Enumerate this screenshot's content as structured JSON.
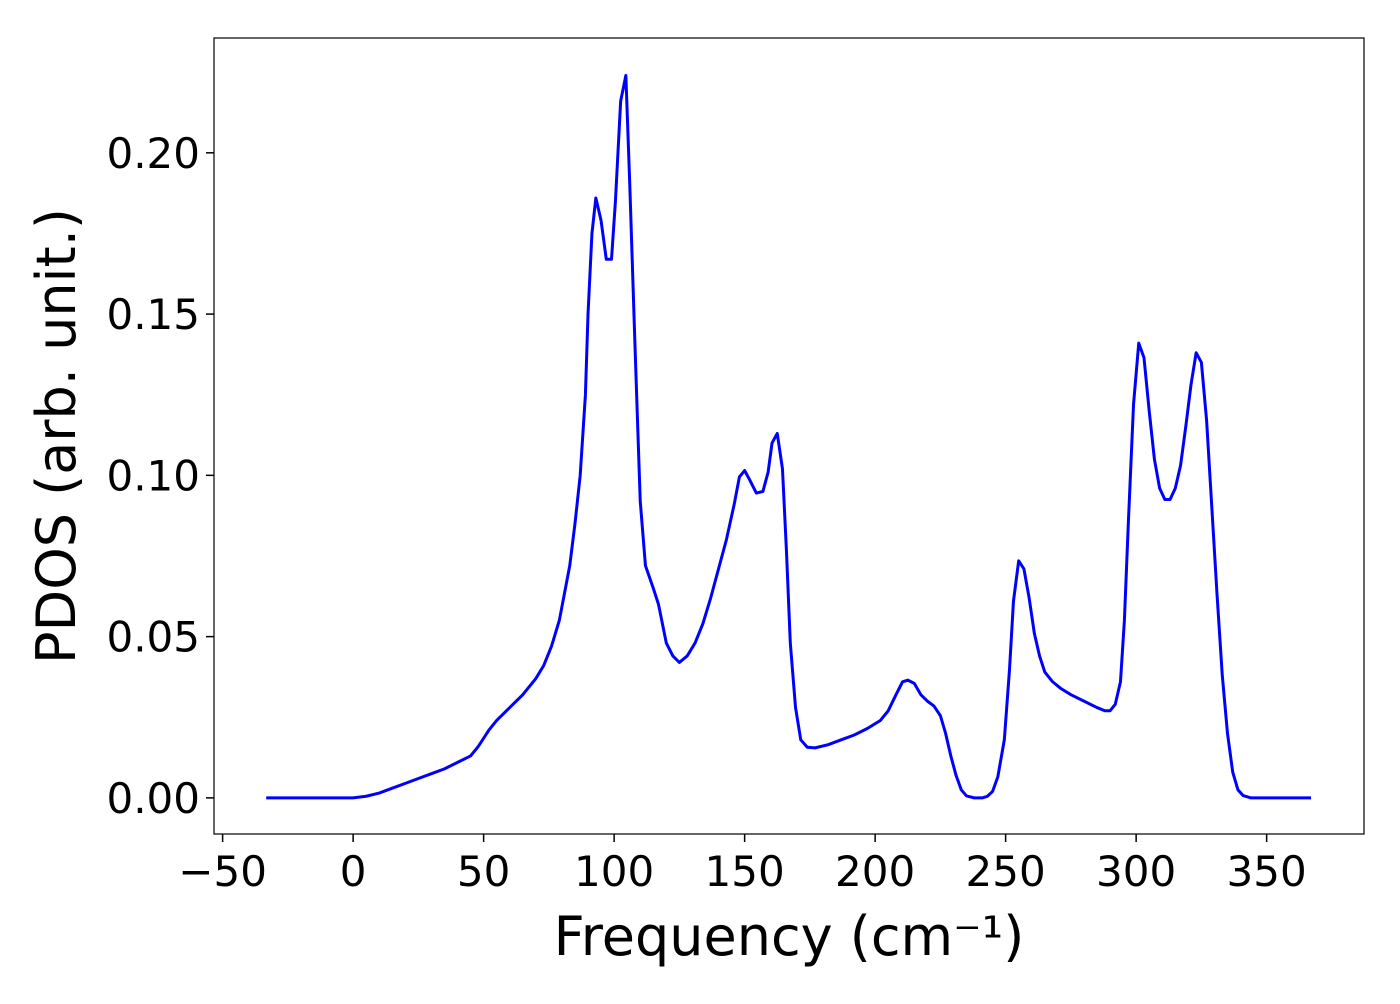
{
  "chart_data": {
    "type": "line",
    "xlabel": "Frequency (cm⁻¹)",
    "ylabel": "PDOS (arb. unit.)",
    "xlim": [
      -53.3,
      387.3
    ],
    "ylim": [
      -0.0112,
      0.2356
    ],
    "xticks": [
      {
        "value": -50,
        "label": "−50"
      },
      0,
      50,
      100,
      150,
      200,
      250,
      300,
      350
    ],
    "yticks": [
      {
        "value": 0,
        "label": "0.00"
      },
      {
        "value": 0.05,
        "label": "0.05"
      },
      {
        "value": 0.1,
        "label": "0.10"
      },
      {
        "value": 0.15,
        "label": "0.15"
      },
      {
        "value": 0.2,
        "label": "0.20"
      }
    ],
    "grid": false,
    "series": [
      {
        "color": "#0000ff",
        "x": [
          -33.3,
          0,
          5,
          10,
          15,
          20,
          25,
          30,
          35,
          40,
          45,
          48,
          52,
          55,
          60,
          65,
          70,
          73,
          76,
          79,
          83,
          85,
          87,
          89,
          90,
          91.5,
          93,
          95,
          97,
          99,
          100.5,
          102.5,
          104.5,
          106,
          108,
          110,
          112,
          115,
          117,
          120,
          122.5,
          125,
          128,
          131,
          134,
          137,
          140,
          143,
          146,
          148,
          150,
          152,
          154.5,
          157,
          159,
          160.5,
          162.5,
          164.5,
          166,
          167.5,
          169.5,
          171.5,
          174,
          177,
          182,
          187,
          192,
          197,
          202,
          205,
          208,
          210.5,
          212.5,
          215,
          217.5,
          220,
          222.5,
          225,
          227,
          229,
          231,
          233,
          235,
          238,
          241,
          243,
          245,
          247,
          249.5,
          251.5,
          253,
          255,
          257,
          259,
          261,
          263,
          265,
          268,
          271,
          275,
          280,
          285,
          288,
          290,
          292,
          294,
          295.5,
          297,
          299,
          301,
          303,
          305,
          307,
          309,
          311,
          313,
          315,
          317,
          319,
          321,
          323,
          325,
          327,
          329,
          331,
          333,
          335,
          337,
          339,
          341,
          344,
          367
        ],
        "values": [
          0,
          0,
          0.0005,
          0.0015,
          0.003,
          0.0045,
          0.006,
          0.0075,
          0.009,
          0.011,
          0.013,
          0.016,
          0.021,
          0.024,
          0.028,
          0.032,
          0.037,
          0.041,
          0.047,
          0.055,
          0.072,
          0.085,
          0.1,
          0.125,
          0.15,
          0.175,
          0.186,
          0.179,
          0.167,
          0.167,
          0.185,
          0.216,
          0.224,
          0.19,
          0.14,
          0.092,
          0.072,
          0.065,
          0.06,
          0.048,
          0.044,
          0.042,
          0.044,
          0.048,
          0.054,
          0.062,
          0.071,
          0.08,
          0.091,
          0.0995,
          0.1015,
          0.0985,
          0.0945,
          0.095,
          0.101,
          0.11,
          0.113,
          0.102,
          0.077,
          0.048,
          0.028,
          0.018,
          0.0157,
          0.0155,
          0.0165,
          0.018,
          0.0195,
          0.0215,
          0.024,
          0.027,
          0.032,
          0.036,
          0.0365,
          0.0355,
          0.032,
          0.03,
          0.0285,
          0.0255,
          0.02,
          0.013,
          0.007,
          0.0025,
          0.0006,
          0,
          0,
          0.0005,
          0.002,
          0.0065,
          0.018,
          0.04,
          0.061,
          0.0735,
          0.071,
          0.062,
          0.051,
          0.044,
          0.039,
          0.036,
          0.034,
          0.032,
          0.03,
          0.028,
          0.027,
          0.027,
          0.029,
          0.036,
          0.055,
          0.085,
          0.122,
          0.141,
          0.1365,
          0.12,
          0.105,
          0.096,
          0.0925,
          0.0925,
          0.096,
          0.103,
          0.115,
          0.128,
          0.138,
          0.135,
          0.117,
          0.09,
          0.063,
          0.038,
          0.02,
          0.008,
          0.0025,
          0.0007,
          0,
          0
        ]
      }
    ]
  }
}
